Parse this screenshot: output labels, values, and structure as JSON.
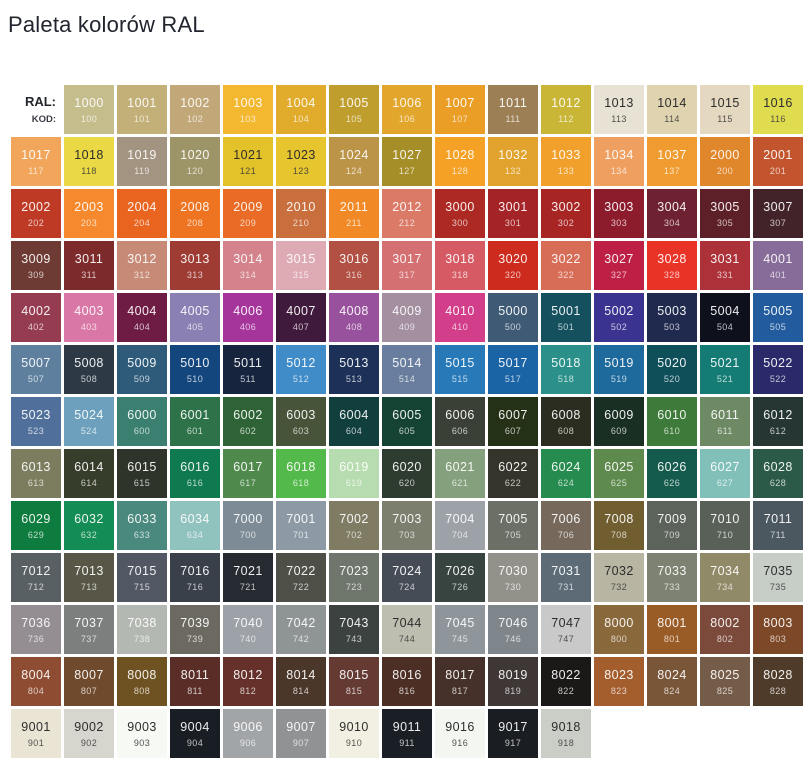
{
  "title": "Paleta kolorów RAL",
  "legend": {
    "ral_label": "RAL:",
    "kod_label": "KOD:"
  },
  "palette": {
    "rows": [
      [
        {
          "ral": "1000",
          "kod": "100",
          "hex": "#C5BD8B"
        },
        {
          "ral": "1001",
          "kod": "101",
          "hex": "#C2B078"
        },
        {
          "ral": "1002",
          "kod": "102",
          "hex": "#C2A878"
        },
        {
          "ral": "1003",
          "kod": "103",
          "hex": "#F3B82F"
        },
        {
          "ral": "1004",
          "kod": "104",
          "hex": "#E1AC2B"
        },
        {
          "ral": "1005",
          "kod": "105",
          "hex": "#C09E2D"
        },
        {
          "ral": "1006",
          "kod": "106",
          "hex": "#E3A62C"
        },
        {
          "ral": "1007",
          "kod": "107",
          "hex": "#EA9E26"
        },
        {
          "ral": "1011",
          "kod": "111",
          "hex": "#9D7F56"
        },
        {
          "ral": "1012",
          "kod": "112",
          "hex": "#C9B637"
        },
        {
          "ral": "1013",
          "kod": "113",
          "hex": "#E7E2D3",
          "dark": true
        },
        {
          "ral": "1014",
          "kod": "114",
          "hex": "#E0D3B0",
          "dark": true
        },
        {
          "ral": "1015",
          "kod": "115",
          "hex": "#E5D8C0",
          "dark": true
        },
        {
          "ral": "1016",
          "kod": "116",
          "hex": "#E0DC50",
          "dark": true
        }
      ],
      [
        {
          "ral": "1017",
          "kod": "117",
          "hex": "#F2A65C"
        },
        {
          "ral": "1018",
          "kod": "118",
          "hex": "#EAD944",
          "dark": true
        },
        {
          "ral": "1019",
          "kod": "119",
          "hex": "#A39481"
        },
        {
          "ral": "1020",
          "kod": "120",
          "hex": "#9D9568"
        },
        {
          "ral": "1021",
          "kod": "121",
          "hex": "#E3C229",
          "dark": true
        },
        {
          "ral": "1023",
          "kod": "123",
          "hex": "#E7C52E",
          "dark": true
        },
        {
          "ral": "1024",
          "kod": "124",
          "hex": "#BB9448"
        },
        {
          "ral": "1027",
          "kod": "127",
          "hex": "#A58D27"
        },
        {
          "ral": "1028",
          "kod": "128",
          "hex": "#F5A125"
        },
        {
          "ral": "1032",
          "kod": "132",
          "hex": "#E1A32E"
        },
        {
          "ral": "1033",
          "kod": "133",
          "hex": "#F2A02C"
        },
        {
          "ral": "1034",
          "kod": "134",
          "hex": "#EFA061"
        },
        {
          "ral": "1037",
          "kod": "137",
          "hex": "#F09B30"
        },
        {
          "ral": "2000",
          "kod": "200",
          "hex": "#E0862B"
        },
        {
          "ral": "2001",
          "kod": "201",
          "hex": "#C2552E"
        }
      ],
      [
        {
          "ral": "2002",
          "kod": "202",
          "hex": "#BF3A25"
        },
        {
          "ral": "2003",
          "kod": "203",
          "hex": "#F6892D"
        },
        {
          "ral": "2004",
          "kod": "204",
          "hex": "#E8641F"
        },
        {
          "ral": "2008",
          "kod": "208",
          "hex": "#EF7422"
        },
        {
          "ral": "2009",
          "kod": "209",
          "hex": "#E96B25"
        },
        {
          "ral": "2010",
          "kod": "210",
          "hex": "#C96E3D"
        },
        {
          "ral": "2011",
          "kod": "211",
          "hex": "#F18A26"
        },
        {
          "ral": "2012",
          "kod": "212",
          "hex": "#DA7A67"
        },
        {
          "ral": "3000",
          "kod": "300",
          "hex": "#AC2A23"
        },
        {
          "ral": "3001",
          "kod": "301",
          "hex": "#A32326"
        },
        {
          "ral": "3002",
          "kod": "302",
          "hex": "#A72624"
        },
        {
          "ral": "3003",
          "kod": "303",
          "hex": "#8C1B2C"
        },
        {
          "ral": "3004",
          "kod": "304",
          "hex": "#6E2130"
        },
        {
          "ral": "3005",
          "kod": "305",
          "hex": "#5E2028"
        },
        {
          "ral": "3007",
          "kod": "307",
          "hex": "#43232A"
        }
      ],
      [
        {
          "ral": "3009",
          "kod": "309",
          "hex": "#6E3B34"
        },
        {
          "ral": "3011",
          "kod": "311",
          "hex": "#7D2A2B"
        },
        {
          "ral": "3012",
          "kod": "312",
          "hex": "#C68A77"
        },
        {
          "ral": "3013",
          "kod": "313",
          "hex": "#9E3B33"
        },
        {
          "ral": "3014",
          "kod": "314",
          "hex": "#D4838C"
        },
        {
          "ral": "3015",
          "kod": "315",
          "hex": "#DEABB4"
        },
        {
          "ral": "3016",
          "kod": "316",
          "hex": "#B15043"
        },
        {
          "ral": "3017",
          "kod": "317",
          "hex": "#D46F72"
        },
        {
          "ral": "3018",
          "kod": "318",
          "hex": "#D55A64"
        },
        {
          "ral": "3020",
          "kod": "320",
          "hex": "#CE2B1F"
        },
        {
          "ral": "3022",
          "kod": "322",
          "hex": "#D76C57"
        },
        {
          "ral": "3027",
          "kod": "327",
          "hex": "#BE2045"
        },
        {
          "ral": "3028",
          "kod": "328",
          "hex": "#EA3327"
        },
        {
          "ral": "3031",
          "kod": "331",
          "hex": "#AC3139"
        },
        {
          "ral": "4001",
          "kod": "401",
          "hex": "#876B99"
        }
      ],
      [
        {
          "ral": "4002",
          "kod": "402",
          "hex": "#953C50"
        },
        {
          "ral": "4003",
          "kod": "403",
          "hex": "#D978A6"
        },
        {
          "ral": "4004",
          "kod": "404",
          "hex": "#6E1C44"
        },
        {
          "ral": "4005",
          "kod": "405",
          "hex": "#8B80B3"
        },
        {
          "ral": "4006",
          "kod": "406",
          "hex": "#A5359B"
        },
        {
          "ral": "4007",
          "kod": "407",
          "hex": "#401A3C"
        },
        {
          "ral": "4008",
          "kod": "408",
          "hex": "#98519D"
        },
        {
          "ral": "4009",
          "kod": "409",
          "hex": "#A48FA0"
        },
        {
          "ral": "4010",
          "kod": "410",
          "hex": "#D33E8B"
        },
        {
          "ral": "5000",
          "kod": "500",
          "hex": "#3E5A74"
        },
        {
          "ral": "5001",
          "kod": "501",
          "hex": "#14505E"
        },
        {
          "ral": "5002",
          "kod": "502",
          "hex": "#3A3490"
        },
        {
          "ral": "5003",
          "kod": "503",
          "hex": "#202A4E"
        },
        {
          "ral": "5004",
          "kod": "504",
          "hex": "#0E101C"
        },
        {
          "ral": "5005",
          "kod": "505",
          "hex": "#235C9E"
        }
      ],
      [
        {
          "ral": "5007",
          "kod": "507",
          "hex": "#5E7F9E"
        },
        {
          "ral": "5008",
          "kod": "508",
          "hex": "#2D3A45"
        },
        {
          "ral": "5009",
          "kod": "509",
          "hex": "#2E5B7A"
        },
        {
          "ral": "5010",
          "kod": "510",
          "hex": "#14467E"
        },
        {
          "ral": "5011",
          "kod": "511",
          "hex": "#16243E"
        },
        {
          "ral": "5012",
          "kod": "512",
          "hex": "#3F8CC8"
        },
        {
          "ral": "5013",
          "kod": "513",
          "hex": "#1D3057"
        },
        {
          "ral": "5014",
          "kod": "514",
          "hex": "#697E9E"
        },
        {
          "ral": "5015",
          "kod": "515",
          "hex": "#2779B8"
        },
        {
          "ral": "5017",
          "kod": "517",
          "hex": "#1A63A5"
        },
        {
          "ral": "5018",
          "kod": "518",
          "hex": "#2B9089"
        },
        {
          "ral": "5019",
          "kod": "519",
          "hex": "#1F6A9C"
        },
        {
          "ral": "5020",
          "kod": "520",
          "hex": "#0E4F5A"
        },
        {
          "ral": "5021",
          "kod": "521",
          "hex": "#147C74"
        },
        {
          "ral": "5022",
          "kod": "522",
          "hex": "#2A2A6A"
        }
      ],
      [
        {
          "ral": "5023",
          "kod": "523",
          "hex": "#50709B"
        },
        {
          "ral": "5024",
          "kod": "524",
          "hex": "#6CA0BC"
        },
        {
          "ral": "6000",
          "kod": "600",
          "hex": "#3A7F6F"
        },
        {
          "ral": "6001",
          "kod": "601",
          "hex": "#2E7249"
        },
        {
          "ral": "6002",
          "kod": "602",
          "hex": "#2D6335"
        },
        {
          "ral": "6003",
          "kod": "603",
          "hex": "#475439"
        },
        {
          "ral": "6004",
          "kod": "604",
          "hex": "#113F3E"
        },
        {
          "ral": "6005",
          "kod": "605",
          "hex": "#144334"
        },
        {
          "ral": "6006",
          "kod": "606",
          "hex": "#3B4036"
        },
        {
          "ral": "6007",
          "kod": "607",
          "hex": "#253117"
        },
        {
          "ral": "6008",
          "kod": "608",
          "hex": "#2A2D1F"
        },
        {
          "ral": "6009",
          "kod": "609",
          "hex": "#1A2F23"
        },
        {
          "ral": "6010",
          "kod": "610",
          "hex": "#3E7A39"
        },
        {
          "ral": "6011",
          "kod": "611",
          "hex": "#6D8A64"
        },
        {
          "ral": "6012",
          "kod": "612",
          "hex": "#263733"
        }
      ],
      [
        {
          "ral": "6013",
          "kod": "613",
          "hex": "#7C7D5F"
        },
        {
          "ral": "6014",
          "kod": "614",
          "hex": "#363D2B"
        },
        {
          "ral": "6015",
          "kod": "615",
          "hex": "#2E3429"
        },
        {
          "ral": "6016",
          "kod": "616",
          "hex": "#0F7950"
        },
        {
          "ral": "6017",
          "kod": "617",
          "hex": "#4F8A4C"
        },
        {
          "ral": "6018",
          "kod": "618",
          "hex": "#54B94B"
        },
        {
          "ral": "6019",
          "kod": "619",
          "hex": "#B7DCAF"
        },
        {
          "ral": "6020",
          "kod": "620",
          "hex": "#2E3B2F"
        },
        {
          "ral": "6021",
          "kod": "621",
          "hex": "#85A07C"
        },
        {
          "ral": "6022",
          "kod": "622",
          "hex": "#35342A"
        },
        {
          "ral": "6024",
          "kod": "624",
          "hex": "#268B4E"
        },
        {
          "ral": "6025",
          "kod": "625",
          "hex": "#5E8A4E"
        },
        {
          "ral": "6026",
          "kod": "626",
          "hex": "#155B4D"
        },
        {
          "ral": "6027",
          "kod": "627",
          "hex": "#80C0B8"
        },
        {
          "ral": "6028",
          "kod": "628",
          "hex": "#2C5A49"
        }
      ],
      [
        {
          "ral": "6029",
          "kod": "629",
          "hex": "#0F7C3F"
        },
        {
          "ral": "6032",
          "kod": "632",
          "hex": "#148C55"
        },
        {
          "ral": "6033",
          "kod": "633",
          "hex": "#4A897D"
        },
        {
          "ral": "6034",
          "kod": "634",
          "hex": "#90C2BE"
        },
        {
          "ral": "7000",
          "kod": "700",
          "hex": "#7C8B96"
        },
        {
          "ral": "7001",
          "kod": "701",
          "hex": "#8D9AA5"
        },
        {
          "ral": "7002",
          "kod": "702",
          "hex": "#807C64"
        },
        {
          "ral": "7003",
          "kod": "703",
          "hex": "#7C7E6E"
        },
        {
          "ral": "7004",
          "kod": "704",
          "hex": "#9DA2A8"
        },
        {
          "ral": "7005",
          "kod": "705",
          "hex": "#6C6F66"
        },
        {
          "ral": "7006",
          "kod": "706",
          "hex": "#76695B"
        },
        {
          "ral": "7008",
          "kod": "708",
          "hex": "#705E30"
        },
        {
          "ral": "7009",
          "kod": "709",
          "hex": "#5C635A"
        },
        {
          "ral": "7010",
          "kod": "710",
          "hex": "#586058"
        },
        {
          "ral": "7011",
          "kod": "711",
          "hex": "#4C5860"
        }
      ],
      [
        {
          "ral": "7012",
          "kod": "712",
          "hex": "#596064"
        },
        {
          "ral": "7013",
          "kod": "713",
          "hex": "#585646"
        },
        {
          "ral": "7015",
          "kod": "715",
          "hex": "#515864"
        },
        {
          "ral": "7016",
          "kod": "716",
          "hex": "#39404A"
        },
        {
          "ral": "7021",
          "kod": "721",
          "hex": "#252B31"
        },
        {
          "ral": "7022",
          "kod": "722",
          "hex": "#4E4F47"
        },
        {
          "ral": "7023",
          "kod": "723",
          "hex": "#6F766C"
        },
        {
          "ral": "7024",
          "kod": "724",
          "hex": "#464C55"
        },
        {
          "ral": "7026",
          "kod": "726",
          "hex": "#374440"
        },
        {
          "ral": "7030",
          "kod": "730",
          "hex": "#92928A"
        },
        {
          "ral": "7031",
          "kod": "731",
          "hex": "#5C6B76"
        },
        {
          "ral": "7032",
          "kod": "732",
          "hex": "#B8B5A2",
          "dark": true
        },
        {
          "ral": "7033",
          "kod": "733",
          "hex": "#7E8272"
        },
        {
          "ral": "7034",
          "kod": "734",
          "hex": "#918A68"
        },
        {
          "ral": "7035",
          "kod": "735",
          "hex": "#C7CDC7",
          "dark": true
        }
      ],
      [
        {
          "ral": "7036",
          "kod": "736",
          "hex": "#948E92"
        },
        {
          "ral": "7037",
          "kod": "737",
          "hex": "#7D7F7E"
        },
        {
          "ral": "7038",
          "kod": "738",
          "hex": "#B3B8B2"
        },
        {
          "ral": "7039",
          "kod": "739",
          "hex": "#6C6A60"
        },
        {
          "ral": "7040",
          "kod": "740",
          "hex": "#9CA2A8"
        },
        {
          "ral": "7042",
          "kod": "742",
          "hex": "#8F9594"
        },
        {
          "ral": "7043",
          "kod": "743",
          "hex": "#3B4240"
        },
        {
          "ral": "7044",
          "kod": "744",
          "hex": "#BEBEB0",
          "dark": true
        },
        {
          "ral": "7045",
          "kod": "745",
          "hex": "#8F969B"
        },
        {
          "ral": "7046",
          "kod": "746",
          "hex": "#7E868C"
        },
        {
          "ral": "7047",
          "kod": "747",
          "hex": "#C9C9C9",
          "dark": true
        },
        {
          "ral": "8000",
          "kod": "800",
          "hex": "#89683B"
        },
        {
          "ral": "8001",
          "kod": "801",
          "hex": "#9A5C26"
        },
        {
          "ral": "8002",
          "kod": "802",
          "hex": "#7B4A3A"
        },
        {
          "ral": "8003",
          "kod": "803",
          "hex": "#7D4827"
        }
      ],
      [
        {
          "ral": "8004",
          "kod": "804",
          "hex": "#8E4C32"
        },
        {
          "ral": "8007",
          "kod": "807",
          "hex": "#6F4A2C"
        },
        {
          "ral": "8008",
          "kod": "808",
          "hex": "#6F5222"
        },
        {
          "ral": "8011",
          "kod": "811",
          "hex": "#5A2D27"
        },
        {
          "ral": "8012",
          "kod": "812",
          "hex": "#66312B"
        },
        {
          "ral": "8014",
          "kod": "814",
          "hex": "#4B362A"
        },
        {
          "ral": "8015",
          "kod": "815",
          "hex": "#643A33"
        },
        {
          "ral": "8016",
          "kod": "816",
          "hex": "#4C2E24"
        },
        {
          "ral": "8017",
          "kod": "817",
          "hex": "#453129"
        },
        {
          "ral": "8019",
          "kod": "819",
          "hex": "#3E3736"
        },
        {
          "ral": "8022",
          "kod": "822",
          "hex": "#1B1818"
        },
        {
          "ral": "8023",
          "kod": "823",
          "hex": "#A45D2D"
        },
        {
          "ral": "8024",
          "kod": "824",
          "hex": "#7A5639"
        },
        {
          "ral": "8025",
          "kod": "825",
          "hex": "#755C49"
        },
        {
          "ral": "8028",
          "kod": "828",
          "hex": "#4F3B2A"
        }
      ],
      [
        {
          "ral": "9001",
          "kod": "901",
          "hex": "#EAE4D4",
          "dark": true
        },
        {
          "ral": "9002",
          "kod": "902",
          "hex": "#D6D6CE",
          "dark": true
        },
        {
          "ral": "9003",
          "kod": "903",
          "hex": "#F7F9F5",
          "dark": true
        },
        {
          "ral": "9004",
          "kod": "904",
          "hex": "#191D24"
        },
        {
          "ral": "9006",
          "kod": "906",
          "hex": "#A2A5A8"
        },
        {
          "ral": "9007",
          "kod": "907",
          "hex": "#909294"
        },
        {
          "ral": "9010",
          "kod": "910",
          "hex": "#F2F0E2",
          "dark": true
        },
        {
          "ral": "9011",
          "kod": "911",
          "hex": "#1A1F26"
        },
        {
          "ral": "9016",
          "kod": "916",
          "hex": "#F4F6F1",
          "dark": true
        },
        {
          "ral": "9017",
          "kod": "917",
          "hex": "#1A1D21"
        },
        {
          "ral": "9018",
          "kod": "918",
          "hex": "#CACEC6",
          "dark": true
        }
      ]
    ]
  }
}
